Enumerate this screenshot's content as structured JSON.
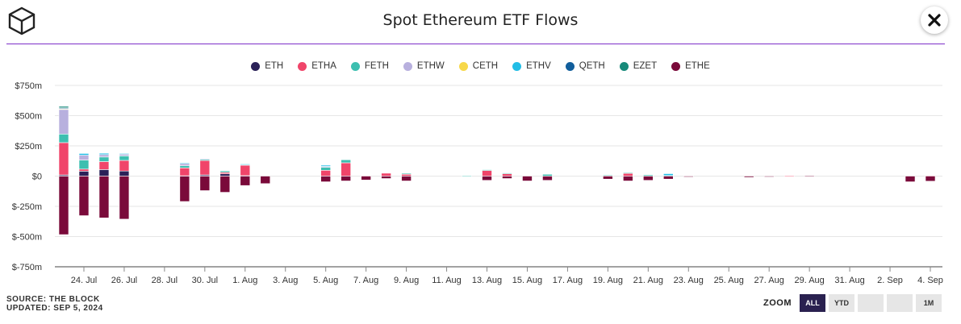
{
  "header": {
    "title": "Spot Ethereum ETF Flows",
    "close_icon": "close-icon",
    "logo_icon": "the-block-cube-logo"
  },
  "footer": {
    "source": "SOURCE: THE BLOCK",
    "updated": "UPDATED: SEP 5, 2024"
  },
  "zoom": {
    "label": "ZOOM",
    "buttons": [
      "ALL",
      "YTD",
      "",
      "",
      "1M"
    ],
    "active": "ALL"
  },
  "chart_data": {
    "type": "bar",
    "stacked": true,
    "title": "Spot Ethereum ETF Flows",
    "ylim": [
      -750,
      750
    ],
    "yticks": [
      750,
      500,
      250,
      0,
      -250,
      -500,
      -750
    ],
    "ytick_labels": [
      "$750m",
      "$500m",
      "$250m",
      "$0",
      "$-250m",
      "$-500m",
      "$-750m"
    ],
    "grid": true,
    "legend_position": "top-center",
    "x_start": "2024-07-23",
    "x_end": "2024-09-04",
    "xtick_labels": [
      "24. Jul",
      "26. Jul",
      "28. Jul",
      "30. Jul",
      "1. Aug",
      "3. Aug",
      "5. Aug",
      "7. Aug",
      "9. Aug",
      "11. Aug",
      "13. Aug",
      "15. Aug",
      "17. Aug",
      "19. Aug",
      "21. Aug",
      "23. Aug",
      "25. Aug",
      "27. Aug",
      "29. Aug",
      "31. Aug",
      "2. Sep",
      "4. Sep"
    ],
    "xtick_dates": [
      "2024-07-24",
      "2024-07-26",
      "2024-07-28",
      "2024-07-30",
      "2024-08-01",
      "2024-08-03",
      "2024-08-05",
      "2024-08-07",
      "2024-08-09",
      "2024-08-11",
      "2024-08-13",
      "2024-08-15",
      "2024-08-17",
      "2024-08-19",
      "2024-08-21",
      "2024-08-23",
      "2024-08-25",
      "2024-08-27",
      "2024-08-29",
      "2024-08-31",
      "2024-09-02",
      "2024-09-04"
    ],
    "series": [
      {
        "name": "ETH",
        "color": "#2b2158"
      },
      {
        "name": "ETHA",
        "color": "#f0456a"
      },
      {
        "name": "FETH",
        "color": "#3dbfb0"
      },
      {
        "name": "ETHW",
        "color": "#b8b0de"
      },
      {
        "name": "CETH",
        "color": "#f7d84a"
      },
      {
        "name": "ETHV",
        "color": "#22bde6"
      },
      {
        "name": "QETH",
        "color": "#115e9c"
      },
      {
        "name": "EZET",
        "color": "#178a7a"
      },
      {
        "name": "ETHE",
        "color": "#7a0a3a"
      }
    ],
    "days": [
      {
        "date": "2024-07-23",
        "values": {
          "ETH": 10,
          "ETHA": 267,
          "FETH": 71,
          "ETHW": 204,
          "CETH": 5,
          "ETHV": 5,
          "QETH": 3,
          "EZET": 12,
          "ETHE": -484
        }
      },
      {
        "date": "2024-07-24",
        "values": {
          "ETH": 41,
          "ETHA": 17,
          "FETH": 75,
          "ETHW": 40,
          "ETHV": 14,
          "ETHE": -327
        }
      },
      {
        "date": "2024-07-25",
        "values": {
          "ETH": 54,
          "ETHA": 66,
          "FETH": 38,
          "ETHW": 20,
          "ETHV": 11,
          "ETHE": -346
        }
      },
      {
        "date": "2024-07-26",
        "values": {
          "ETH": 42,
          "ETHA": 88,
          "FETH": 37,
          "ETHW": 16,
          "ETHV": 4,
          "ETHE": -356
        }
      },
      {
        "date": "2024-07-29",
        "values": {
          "ETH": 3,
          "ETHA": 65,
          "FETH": 18,
          "ETHW": 20,
          "ETHV": 4,
          "ETHE": -210
        }
      },
      {
        "date": "2024-07-30",
        "values": {
          "ETH": 10,
          "ETHA": 119,
          "FETH": 10,
          "ETHW": 5,
          "ETHE": -120
        }
      },
      {
        "date": "2024-07-31",
        "values": {
          "ETH": 19,
          "ETHA": 12,
          "FETH": 12,
          "ETHE": -134
        }
      },
      {
        "date": "2024-08-01",
        "values": {
          "ETH": 4,
          "ETHA": 86,
          "FETH": 7,
          "ETHV": 3,
          "ETHE": -78
        }
      },
      {
        "date": "2024-08-02",
        "values": {
          "ETHE": -62
        }
      },
      {
        "date": "2024-08-05",
        "values": {
          "ETHA": 48,
          "FETH": 24,
          "ETHW": 8,
          "ETHV": 10,
          "ETHE": -47
        }
      },
      {
        "date": "2024-08-06",
        "values": {
          "ETHA": 110,
          "FETH": 25,
          "ETHE": -40
        }
      },
      {
        "date": "2024-08-07",
        "values": {
          "ETHA": 3,
          "ETHE": -32
        }
      },
      {
        "date": "2024-08-08",
        "values": {
          "ETHA": 24,
          "ETHE": -20
        }
      },
      {
        "date": "2024-08-09",
        "values": {
          "ETHA": 15,
          "FETH": 8,
          "ETHE": -40
        }
      },
      {
        "date": "2024-08-12",
        "values": {
          "FETH": 5
        }
      },
      {
        "date": "2024-08-13",
        "values": {
          "ETHA": 47,
          "FETH": 6,
          "ETHE": -35
        }
      },
      {
        "date": "2024-08-14",
        "values": {
          "ETHA": 20,
          "FETH": 6,
          "ETHE": -20
        }
      },
      {
        "date": "2024-08-15",
        "values": {
          "ETHE": -40
        }
      },
      {
        "date": "2024-08-16",
        "values": {
          "FETH": 15,
          "ETHE": -35
        }
      },
      {
        "date": "2024-08-19",
        "values": {
          "ETHA": 5,
          "FETH": 5,
          "ETHE": -25
        }
      },
      {
        "date": "2024-08-20",
        "values": {
          "ETHA": 25,
          "FETH": 4,
          "ETHE": -40
        }
      },
      {
        "date": "2024-08-21",
        "values": {
          "FETH": 10,
          "ETHE": -35
        }
      },
      {
        "date": "2024-08-22",
        "values": {
          "ETHV": 15,
          "FETH": 5,
          "ETHE": -25
        }
      },
      {
        "date": "2024-08-23",
        "values": {
          "QETH": 2,
          "ETHE": -7
        }
      },
      {
        "date": "2024-08-26",
        "values": {
          "ETHE": -10
        }
      },
      {
        "date": "2024-08-27",
        "values": {
          "ETHE": -5
        }
      },
      {
        "date": "2024-08-28",
        "values": {
          "ETHA": 5
        }
      },
      {
        "date": "2024-08-29",
        "values": {
          "ETHE": 5
        }
      },
      {
        "date": "2024-09-03",
        "values": {
          "ETHE": -47
        }
      },
      {
        "date": "2024-09-04",
        "values": {
          "ETHA": 4,
          "ETHE": -42
        }
      }
    ]
  }
}
